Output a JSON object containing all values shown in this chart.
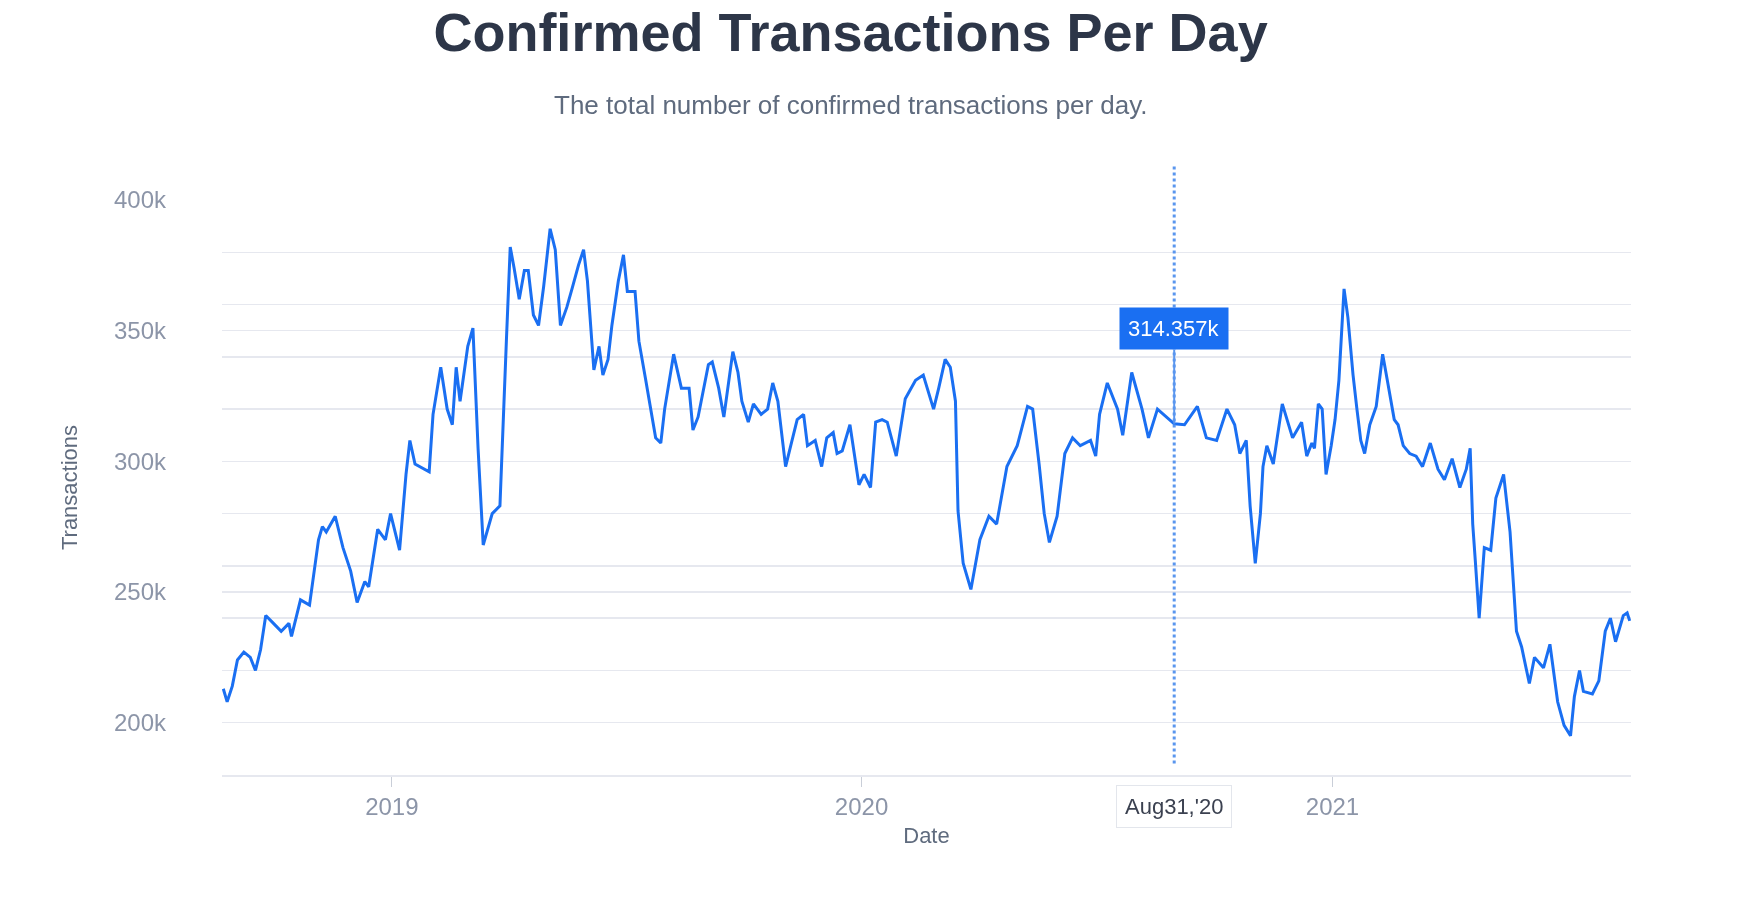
{
  "chart_data": {
    "type": "line",
    "title": "Confirmed Transactions Per Day",
    "subtitle": "The total number of confirmed transactions per day.",
    "xlabel": "Date",
    "ylabel": "Transactions",
    "x": [
      "2018-08-23",
      "2018-08-26",
      "2018-08-30",
      "2018-09-03",
      "2018-09-08",
      "2018-09-13",
      "2018-09-17",
      "2018-09-21",
      "2018-09-25",
      "2018-10-01",
      "2018-10-07",
      "2018-10-13",
      "2018-10-15",
      "2018-10-22",
      "2018-10-29",
      "2018-11-05",
      "2018-11-08",
      "2018-11-11",
      "2018-11-18",
      "2018-11-24",
      "2018-11-30",
      "2018-12-05",
      "2018-12-11",
      "2018-12-14",
      "2018-12-21",
      "2018-12-27",
      "2018-12-31",
      "2019-01-07",
      "2019-01-12",
      "2019-01-15",
      "2019-01-19",
      "2019-01-30",
      "2019-02-02",
      "2019-02-08",
      "2019-02-13",
      "2019-02-17",
      "2019-02-20",
      "2019-02-23",
      "2019-03-01",
      "2019-03-05",
      "2019-03-09",
      "2019-03-13",
      "2019-03-20",
      "2019-03-26",
      "2019-03-31",
      "2019-04-03",
      "2019-04-06",
      "2019-04-10",
      "2019-04-14",
      "2019-04-17",
      "2019-04-21",
      "2019-04-25",
      "2019-04-29",
      "2019-05-04",
      "2019-05-08",
      "2019-05-12",
      "2019-05-17",
      "2019-05-21",
      "2019-05-26",
      "2019-05-30",
      "2019-06-02",
      "2019-06-07",
      "2019-06-11",
      "2019-06-14",
      "2019-06-18",
      "2019-06-21",
      "2019-06-26",
      "2019-06-30",
      "2019-07-03",
      "2019-07-09",
      "2019-07-12",
      "2019-07-17",
      "2019-07-25",
      "2019-07-29",
      "2019-08-01",
      "2019-08-08",
      "2019-08-14",
      "2019-08-20",
      "2019-08-23",
      "2019-08-27",
      "2019-09-04",
      "2019-09-07",
      "2019-09-12",
      "2019-09-16",
      "2019-09-23",
      "2019-09-27",
      "2019-09-30",
      "2019-10-05",
      "2019-10-09",
      "2019-10-15",
      "2019-10-20",
      "2019-10-24",
      "2019-10-28",
      "2019-11-03",
      "2019-11-07",
      "2019-11-12",
      "2019-11-17",
      "2019-11-20",
      "2019-11-26",
      "2019-12-01",
      "2019-12-05",
      "2019-12-10",
      "2019-12-13",
      "2019-12-17",
      "2019-12-23",
      "2019-12-30",
      "2020-01-03",
      "2020-01-08",
      "2020-01-12",
      "2020-01-17",
      "2020-01-21",
      "2020-01-28",
      "2020-02-04",
      "2020-02-12",
      "2020-02-18",
      "2020-02-26",
      "2020-03-01",
      "2020-03-06",
      "2020-03-10",
      "2020-03-14",
      "2020-03-16",
      "2020-03-20",
      "2020-03-26",
      "2020-04-02",
      "2020-04-09",
      "2020-04-15",
      "2020-04-23",
      "2020-05-01",
      "2020-05-09",
      "2020-05-13",
      "2020-05-18",
      "2020-05-22",
      "2020-05-26",
      "2020-06-01",
      "2020-06-07",
      "2020-06-13",
      "2020-06-19",
      "2020-06-27",
      "2020-07-01",
      "2020-07-04",
      "2020-07-10",
      "2020-07-18",
      "2020-07-22",
      "2020-07-29",
      "2020-08-06",
      "2020-08-11",
      "2020-08-18",
      "2020-08-31",
      "2020-09-08",
      "2020-09-18",
      "2020-09-25",
      "2020-10-03",
      "2020-10-11",
      "2020-10-17",
      "2020-10-21",
      "2020-10-26",
      "2020-10-29",
      "2020-11-02",
      "2020-11-06",
      "2020-11-08",
      "2020-11-11",
      "2020-11-16",
      "2020-11-23",
      "2020-12-01",
      "2020-12-08",
      "2020-12-12",
      "2020-12-16",
      "2020-12-18",
      "2020-12-21",
      "2020-12-24",
      "2020-12-27",
      "2020-12-31",
      "2021-01-03",
      "2021-01-06",
      "2021-01-10",
      "2021-01-13",
      "2021-01-17",
      "2021-01-20",
      "2021-01-23",
      "2021-01-26",
      "2021-01-30",
      "2021-02-04",
      "2021-02-09",
      "2021-02-13",
      "2021-02-18",
      "2021-02-21",
      "2021-02-25",
      "2021-03-02",
      "2021-03-07",
      "2021-03-12",
      "2021-03-18",
      "2021-03-24",
      "2021-03-29",
      "2021-04-04",
      "2021-04-10",
      "2021-04-15",
      "2021-04-18",
      "2021-04-20",
      "2021-04-22",
      "2021-04-25",
      "2021-04-29",
      "2021-05-04",
      "2021-05-08",
      "2021-05-14",
      "2021-05-19",
      "2021-05-24",
      "2021-05-28",
      "2021-06-03",
      "2021-06-07",
      "2021-06-14",
      "2021-06-19",
      "2021-06-25",
      "2021-06-30",
      "2021-07-05",
      "2021-07-08",
      "2021-07-12",
      "2021-07-15",
      "2021-07-22",
      "2021-07-27",
      "2021-08-01",
      "2021-08-05",
      "2021-08-09",
      "2021-08-15",
      "2021-08-18",
      "2021-08-20"
    ],
    "series": [
      {
        "color": "#1a6ff2",
        "values": [
          213000,
          208000,
          214000,
          224000,
          227000,
          225000,
          220000,
          228000,
          241000,
          238000,
          235000,
          238000,
          233000,
          247000,
          245000,
          270000,
          275000,
          273000,
          279000,
          267000,
          258000,
          246000,
          254000,
          252000,
          274000,
          270000,
          280000,
          266000,
          295000,
          308000,
          299000,
          296000,
          318000,
          336000,
          320000,
          314000,
          336000,
          323000,
          344000,
          351000,
          305000,
          268000,
          280000,
          283000,
          346000,
          382000,
          374000,
          362000,
          373000,
          373000,
          356000,
          352000,
          367000,
          389000,
          381000,
          352000,
          359000,
          366000,
          375000,
          381000,
          369000,
          335000,
          344000,
          333000,
          339000,
          352000,
          369000,
          379000,
          365000,
          365000,
          346000,
          332000,
          309000,
          307000,
          320000,
          341000,
          328000,
          328000,
          312000,
          317000,
          337000,
          338000,
          328000,
          317000,
          342000,
          334000,
          323000,
          315000,
          322000,
          318000,
          320000,
          330000,
          323000,
          298000,
          306000,
          316000,
          318000,
          306000,
          308000,
          298000,
          309000,
          311000,
          303000,
          304000,
          314000,
          291000,
          295000,
          290000,
          315000,
          316000,
          315000,
          302000,
          324000,
          331000,
          333000,
          320000,
          328000,
          339000,
          336000,
          323000,
          281000,
          261000,
          251000,
          270000,
          279000,
          276000,
          298000,
          306000,
          321000,
          320000,
          299000,
          280000,
          269000,
          279000,
          303000,
          309000,
          306000,
          308000,
          302000,
          318000,
          330000,
          320000,
          310000,
          334000,
          320000,
          309000,
          320000,
          314357,
          314000,
          321000,
          309000,
          308000,
          320000,
          314000,
          303000,
          308000,
          283000,
          261000,
          280000,
          298000,
          306000,
          299000,
          322000,
          309000,
          315000,
          302000,
          307000,
          305000,
          322000,
          320000,
          295000,
          306000,
          316000,
          331000,
          366000,
          355000,
          333000,
          320000,
          308000,
          303000,
          314000,
          321000,
          341000,
          330000,
          316000,
          314000,
          306000,
          303000,
          302000,
          298000,
          307000,
          297000,
          293000,
          301000,
          290000,
          297000,
          305000,
          276000,
          262000,
          240000,
          267000,
          266000,
          286000,
          295000,
          273000,
          235000,
          229000,
          215000,
          225000,
          221000,
          230000,
          208000,
          199000,
          195000,
          210000,
          220000,
          212000,
          211000,
          216000,
          235000,
          240000,
          231000,
          241000,
          242000,
          239000
        ]
      }
    ],
    "xlim": [
      "2018-08-22",
      "2021-08-21"
    ],
    "xticks": [
      {
        "value": "2019-01-01",
        "label": "2019"
      },
      {
        "value": "2020-01-01",
        "label": "2020"
      },
      {
        "value": "2021-01-01",
        "label": "2021"
      }
    ],
    "ylim": [
      180000,
      400000
    ],
    "yticks": [
      {
        "value": 180000,
        "label": null
      },
      {
        "value": 200000,
        "label": "200k"
      },
      {
        "value": 220000,
        "label": null
      },
      {
        "value": 240000,
        "label": null
      },
      {
        "value": 250000,
        "label": "250k"
      },
      {
        "value": 260000,
        "label": null
      },
      {
        "value": 280000,
        "label": null
      },
      {
        "value": 300000,
        "label": "300k"
      },
      {
        "value": 320000,
        "label": null
      },
      {
        "value": 340000,
        "label": null
      },
      {
        "value": 350000,
        "label": "350k"
      },
      {
        "value": 360000,
        "label": null
      },
      {
        "value": 380000,
        "label": null
      },
      {
        "value": 400000,
        "label": "400k"
      }
    ],
    "grid": "y",
    "ref_lines": [
      {
        "axis": "x",
        "value": "2020-08-31",
        "label": "Aug31,'20",
        "color": "#5a96ee",
        "line_style": "dotted"
      }
    ],
    "annotations": [
      {
        "text": "314.357k",
        "x": "2020-08-31",
        "y": 314357
      }
    ]
  }
}
